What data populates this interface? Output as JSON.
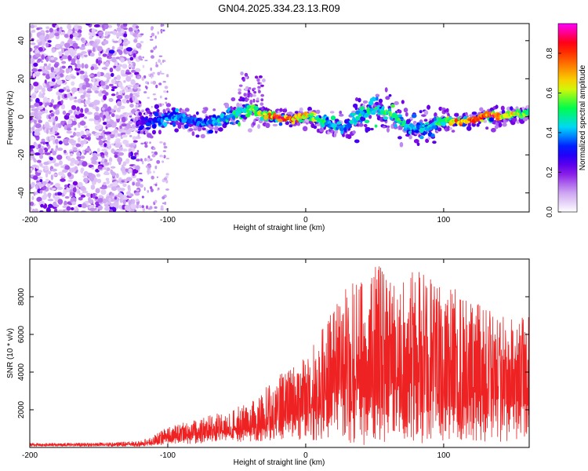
{
  "title": "GN04.2025.334.23.13.R09",
  "chart_data": [
    {
      "type": "heatmap",
      "name": "spectrogram",
      "xlabel": "Height of straight line (km)",
      "ylabel": "Frequency (Hz)",
      "xlim": [
        -200,
        162
      ],
      "ylim": [
        -50,
        49
      ],
      "xticks": [
        -200,
        -100,
        0,
        100
      ],
      "yticks": [
        -40,
        -20,
        0,
        20,
        40
      ],
      "colorbar": {
        "label": "Normalized spectral amplitude",
        "range": [
          0,
          0.95
        ],
        "ticks": [
          0.0,
          0.2,
          0.4,
          0.6,
          0.8
        ],
        "tick_labels": [
          "0.0",
          "0.2",
          "0.4",
          "0.6",
          "0.8"
        ],
        "colormap": [
          "#ffffff",
          "#c89cf0",
          "#7a00e6",
          "#0000ff",
          "#00d6ff",
          "#00ff44",
          "#f5f500",
          "#ff7a00",
          "#ff0000",
          "#ff00ff"
        ]
      },
      "ridge": {
        "x": [
          -122,
          -110,
          -100,
          -90,
          -80,
          -70,
          -60,
          -50,
          -40,
          -30,
          -20,
          -10,
          0,
          10,
          20,
          30,
          40,
          50,
          60,
          70,
          80,
          90,
          100,
          110,
          120,
          130,
          140,
          150,
          160
        ],
        "y": [
          -3,
          -2,
          0,
          -1,
          -2,
          -3,
          -1,
          2,
          4,
          1,
          0,
          -1,
          1,
          -2,
          -4,
          -6,
          2,
          4,
          3,
          -4,
          -6,
          -5,
          -2,
          -3,
          -2,
          1,
          0,
          1,
          2
        ],
        "width_hz": [
          6,
          7,
          6,
          6,
          7,
          8,
          7,
          8,
          9,
          6,
          5,
          5,
          5,
          6,
          7,
          8,
          10,
          11,
          9,
          8,
          9,
          8,
          6,
          5,
          5,
          5,
          5,
          5,
          5
        ],
        "peak_amplitude": [
          0.25,
          0.35,
          0.4,
          0.4,
          0.35,
          0.4,
          0.45,
          0.5,
          0.55,
          0.65,
          0.85,
          0.8,
          0.7,
          0.55,
          0.45,
          0.4,
          0.5,
          0.5,
          0.55,
          0.5,
          0.4,
          0.45,
          0.55,
          0.75,
          0.9,
          0.85,
          0.8,
          0.65,
          0.55
        ]
      },
      "noise_region_x": [
        -200,
        -122
      ],
      "sparse_region_x": [
        -122,
        -100
      ]
    },
    {
      "type": "line",
      "name": "snr",
      "xlabel": "Height of straight line (km)",
      "ylabel": "SNR (10 * v/v)",
      "xlim": [
        -200,
        162
      ],
      "ylim": [
        0,
        10000
      ],
      "xticks": [
        -200,
        -100,
        0,
        100
      ],
      "yticks": [
        2000,
        4000,
        6000,
        8000
      ],
      "color": "#ee2222",
      "envelope": {
        "x": [
          -200,
          -150,
          -120,
          -110,
          -100,
          -80,
          -60,
          -40,
          -20,
          -10,
          0,
          10,
          20,
          30,
          40,
          50,
          60,
          70,
          80,
          90,
          100,
          110,
          120,
          130,
          140,
          150,
          162
        ],
        "max": [
          250,
          250,
          350,
          650,
          1100,
          1500,
          1900,
          2400,
          3800,
          4400,
          4800,
          6000,
          7500,
          8700,
          9400,
          9800,
          9300,
          9000,
          9800,
          9400,
          8300,
          8600,
          8000,
          7400,
          7000,
          6800,
          7200
        ],
        "min": [
          50,
          50,
          50,
          100,
          150,
          200,
          250,
          300,
          400,
          500,
          300,
          400,
          500,
          200,
          100,
          200,
          300,
          300,
          200,
          100,
          200,
          300,
          400,
          300,
          200,
          300,
          400
        ]
      }
    }
  ]
}
